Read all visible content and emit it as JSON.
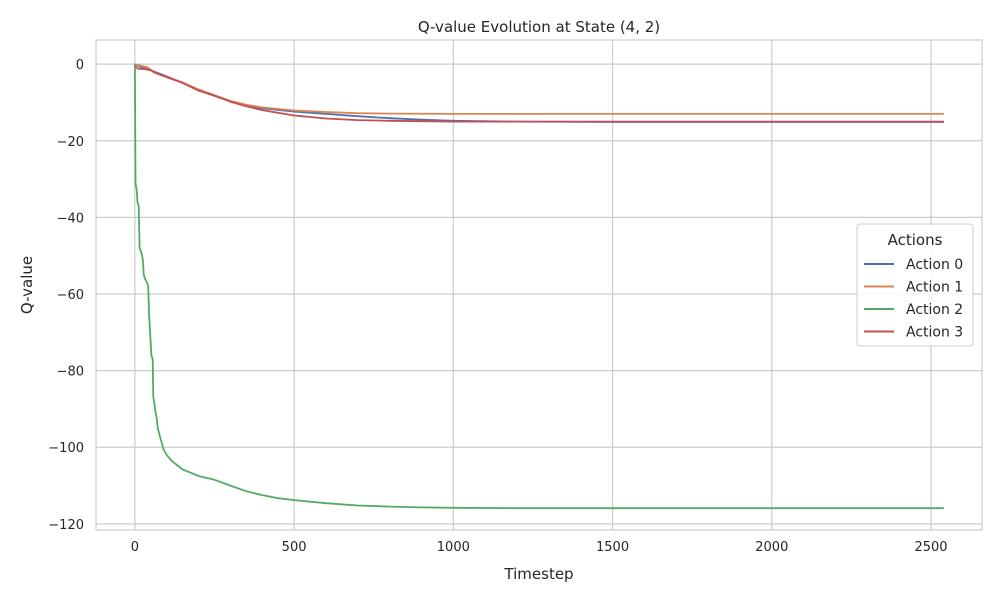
{
  "chart_data": {
    "type": "line",
    "title": "Q-value Evolution at State (4, 2)",
    "xlabel": "Timestep",
    "ylabel": "Q-value",
    "xlim": [
      -122,
      2660
    ],
    "ylim": [
      -121.6,
      6.3
    ],
    "xticks": [
      0,
      500,
      1000,
      1500,
      2000,
      2500
    ],
    "yticks": [
      0,
      -20,
      -40,
      -60,
      -80,
      -100,
      -120
    ],
    "grid": true,
    "legend": {
      "title": "Actions",
      "placement": "center-right"
    },
    "series": [
      {
        "name": "Action 0",
        "color": "#4c72b0",
        "points": [
          [
            0,
            0
          ],
          [
            20,
            -0.8
          ],
          [
            50,
            -1.6
          ],
          [
            100,
            -3.2
          ],
          [
            150,
            -4.9
          ],
          [
            200,
            -6.8
          ],
          [
            250,
            -8.3
          ],
          [
            300,
            -9.7
          ],
          [
            350,
            -10.8
          ],
          [
            400,
            -11.5
          ],
          [
            500,
            -12.4
          ],
          [
            600,
            -13.0
          ],
          [
            700,
            -13.6
          ],
          [
            800,
            -14.1
          ],
          [
            900,
            -14.5
          ],
          [
            1000,
            -14.8
          ],
          [
            1200,
            -15.0
          ],
          [
            1500,
            -15.1
          ],
          [
            2000,
            -15.1
          ],
          [
            2540,
            -15.1
          ]
        ]
      },
      {
        "name": "Action 1",
        "color": "#dd8452",
        "points": [
          [
            0,
            0
          ],
          [
            20,
            -0.4
          ],
          [
            40,
            -0.8
          ],
          [
            60,
            -2.2
          ],
          [
            100,
            -3.3
          ],
          [
            150,
            -4.8
          ],
          [
            200,
            -6.6
          ],
          [
            250,
            -8.1
          ],
          [
            300,
            -9.6
          ],
          [
            350,
            -10.6
          ],
          [
            400,
            -11.3
          ],
          [
            500,
            -12.1
          ],
          [
            600,
            -12.5
          ],
          [
            700,
            -12.8
          ],
          [
            800,
            -12.9
          ],
          [
            1000,
            -13.0
          ],
          [
            1500,
            -13.0
          ],
          [
            2000,
            -13.0
          ],
          [
            2540,
            -13.0
          ]
        ]
      },
      {
        "name": "Action 2",
        "color": "#55a868",
        "points": [
          [
            0,
            0
          ],
          [
            2,
            -31
          ],
          [
            6,
            -33
          ],
          [
            8,
            -36
          ],
          [
            12,
            -37
          ],
          [
            15,
            -48
          ],
          [
            20,
            -49
          ],
          [
            25,
            -51
          ],
          [
            28,
            -55
          ],
          [
            32,
            -56
          ],
          [
            38,
            -57
          ],
          [
            42,
            -58
          ],
          [
            45,
            -66
          ],
          [
            48,
            -70
          ],
          [
            52,
            -76
          ],
          [
            56,
            -77
          ],
          [
            58,
            -87
          ],
          [
            62,
            -89
          ],
          [
            65,
            -91
          ],
          [
            68,
            -92
          ],
          [
            72,
            -95
          ],
          [
            78,
            -97
          ],
          [
            85,
            -99
          ],
          [
            90,
            -100.5
          ],
          [
            100,
            -102
          ],
          [
            115,
            -103.5
          ],
          [
            130,
            -104.5
          ],
          [
            150,
            -105.8
          ],
          [
            180,
            -106.8
          ],
          [
            200,
            -107.5
          ],
          [
            250,
            -108.5
          ],
          [
            300,
            -110
          ],
          [
            350,
            -111.5
          ],
          [
            400,
            -112.5
          ],
          [
            450,
            -113.3
          ],
          [
            500,
            -113.8
          ],
          [
            600,
            -114.6
          ],
          [
            700,
            -115.2
          ],
          [
            800,
            -115.5
          ],
          [
            900,
            -115.7
          ],
          [
            1000,
            -115.8
          ],
          [
            1200,
            -115.9
          ],
          [
            1500,
            -115.9
          ],
          [
            2000,
            -115.9
          ],
          [
            2540,
            -115.9
          ]
        ]
      },
      {
        "name": "Action 3",
        "color": "#c44e52",
        "points": [
          [
            0,
            -0.5
          ],
          [
            10,
            -1.2
          ],
          [
            30,
            -1.3
          ],
          [
            50,
            -1.6
          ],
          [
            80,
            -2.8
          ],
          [
            100,
            -3.4
          ],
          [
            150,
            -4.9
          ],
          [
            200,
            -6.9
          ],
          [
            250,
            -8.2
          ],
          [
            300,
            -9.8
          ],
          [
            350,
            -11.0
          ],
          [
            400,
            -12.0
          ],
          [
            500,
            -13.4
          ],
          [
            600,
            -14.2
          ],
          [
            700,
            -14.6
          ],
          [
            800,
            -14.8
          ],
          [
            900,
            -14.9
          ],
          [
            1000,
            -15.0
          ],
          [
            1500,
            -15.0
          ],
          [
            2000,
            -15.0
          ],
          [
            2540,
            -15.0
          ]
        ]
      }
    ]
  }
}
